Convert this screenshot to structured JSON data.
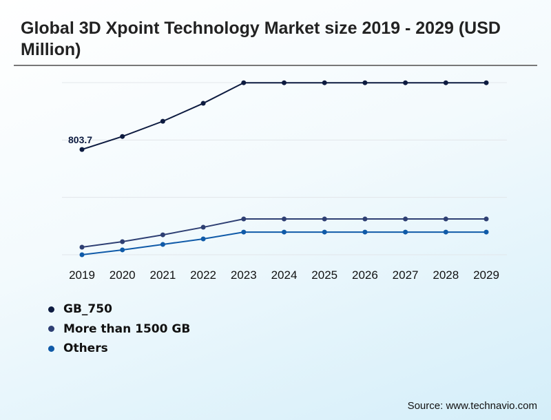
{
  "title": "Global 3D Xpoint Technology Market size 2019 - 2029 (USD Million)",
  "source": "Source: www.technavio.com",
  "chart_data": {
    "type": "line",
    "title": "Global 3D Xpoint Technology Market size 2019 - 2029 (USD Million)",
    "categories": [
      "2019",
      "2020",
      "2021",
      "2022",
      "2023",
      "2024",
      "2025",
      "2026",
      "2027",
      "2028",
      "2029"
    ],
    "ylim": [
      0,
      1314
    ],
    "grid": true,
    "legend_position": "bottom-left",
    "annotations": [
      {
        "series": "GB_750",
        "x": "2019",
        "label": "803.7"
      }
    ],
    "series": [
      {
        "name": "GB_750",
        "color": "#0d1b40",
        "values": [
          803.7,
          903,
          1019,
          1156,
          1313,
          1313,
          1313,
          1313,
          1313,
          1313,
          1313
        ]
      },
      {
        "name": "More than 1500 GB",
        "color": "#2e3f73",
        "values": [
          58,
          100,
          152,
          210,
          273,
          273,
          273,
          273,
          273,
          273,
          273
        ]
      },
      {
        "name": "Others",
        "color": "#0f5aa8",
        "values": [
          0,
          37,
          79,
          121,
          173,
          173,
          173,
          173,
          173,
          173,
          173
        ]
      }
    ]
  }
}
